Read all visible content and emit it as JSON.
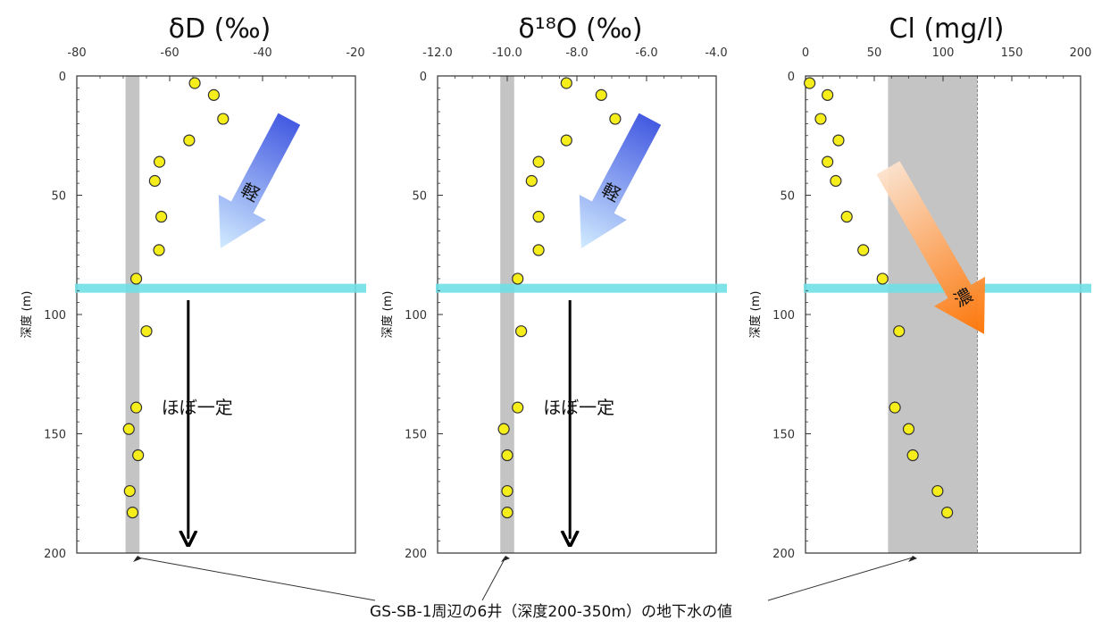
{
  "chart_data": [
    {
      "type": "scatter",
      "title": "δD (‰)",
      "xlabel": "",
      "ylabel": "深度 (m)",
      "xlim": [
        -80,
        -20
      ],
      "ylim": [
        0,
        200
      ],
      "x_ticks": [
        "-80",
        "-60",
        "-40",
        "-20"
      ],
      "y_ticks": [
        "0",
        "50",
        "100",
        "150",
        "200"
      ],
      "points": [
        {
          "x": -54.6,
          "y": 3
        },
        {
          "x": -50.5,
          "y": 8
        },
        {
          "x": -48.5,
          "y": 18
        },
        {
          "x": -55.8,
          "y": 27
        },
        {
          "x": -62.2,
          "y": 36
        },
        {
          "x": -63.2,
          "y": 44
        },
        {
          "x": -61.8,
          "y": 59
        },
        {
          "x": -62.3,
          "y": 73
        },
        {
          "x": -67.2,
          "y": 85
        },
        {
          "x": -65.0,
          "y": 107
        },
        {
          "x": -67.2,
          "y": 139
        },
        {
          "x": -68.8,
          "y": 148
        },
        {
          "x": -66.8,
          "y": 159
        },
        {
          "x": -68.6,
          "y": 174
        },
        {
          "x": -68.0,
          "y": 183
        }
      ],
      "band": {
        "x_min": -69.5,
        "x_max": -66.5
      },
      "reference_depth": 89,
      "arrow_label": "軽",
      "trend_label": "ほぼ一定"
    },
    {
      "type": "scatter",
      "title": "δ¹⁸O (‰)",
      "xlabel": "",
      "ylabel": "深度 (m)",
      "xlim": [
        -12.0,
        -4.0
      ],
      "ylim": [
        0,
        200
      ],
      "x_ticks": [
        "-12.0",
        "-10.0",
        "-8.0",
        "-6.0",
        "-4.0"
      ],
      "y_ticks": [
        "0",
        "50",
        "100",
        "150",
        "200"
      ],
      "points": [
        {
          "x": -8.3,
          "y": 3
        },
        {
          "x": -7.3,
          "y": 8
        },
        {
          "x": -6.9,
          "y": 18
        },
        {
          "x": -8.3,
          "y": 27
        },
        {
          "x": -9.1,
          "y": 36
        },
        {
          "x": -9.3,
          "y": 44
        },
        {
          "x": -9.1,
          "y": 59
        },
        {
          "x": -9.1,
          "y": 73
        },
        {
          "x": -9.7,
          "y": 85
        },
        {
          "x": -9.6,
          "y": 107
        },
        {
          "x": -9.7,
          "y": 139
        },
        {
          "x": -10.1,
          "y": 148
        },
        {
          "x": -10.0,
          "y": 159
        },
        {
          "x": -10.0,
          "y": 174
        },
        {
          "x": -10.0,
          "y": 183
        }
      ],
      "band": {
        "x_min": -10.2,
        "x_max": -9.8
      },
      "reference_depth": 89,
      "arrow_label": "軽",
      "trend_label": "ほぼ一定"
    },
    {
      "type": "scatter",
      "title": "Cl (mg/l)",
      "xlabel": "",
      "ylabel": "深度 (m)",
      "xlim": [
        0,
        200
      ],
      "ylim": [
        0,
        200
      ],
      "x_ticks": [
        "0",
        "50",
        "100",
        "150",
        "200"
      ],
      "y_ticks": [
        "0",
        "50",
        "100",
        "150",
        "200"
      ],
      "points": [
        {
          "x": 3,
          "y": 3
        },
        {
          "x": 16,
          "y": 8
        },
        {
          "x": 11,
          "y": 18
        },
        {
          "x": 24,
          "y": 27
        },
        {
          "x": 16,
          "y": 36
        },
        {
          "x": 22,
          "y": 44
        },
        {
          "x": 30,
          "y": 59
        },
        {
          "x": 42,
          "y": 73
        },
        {
          "x": 56,
          "y": 85
        },
        {
          "x": 68,
          "y": 107
        },
        {
          "x": 65,
          "y": 139
        },
        {
          "x": 75,
          "y": 148
        },
        {
          "x": 78,
          "y": 159
        },
        {
          "x": 96,
          "y": 174
        },
        {
          "x": 103,
          "y": 183
        }
      ],
      "band": {
        "x_min": 60,
        "x_max": 125
      },
      "reference_depth": 89,
      "arrow_label": "濃"
    }
  ],
  "note": "GS-SB-1周辺の6井（深度200-350m）の地下水の値",
  "colors": {
    "point_fill": "#f5ee1a",
    "point_stroke": "#333333",
    "band": "#c4c4c4",
    "reference_line": "#6fe0e6",
    "blue_arrow_top": "#3a52e0",
    "blue_arrow_bottom": "#cfeaff",
    "orange_arrow_top": "#fde2cc",
    "orange_arrow_bottom": "#ff7200"
  }
}
